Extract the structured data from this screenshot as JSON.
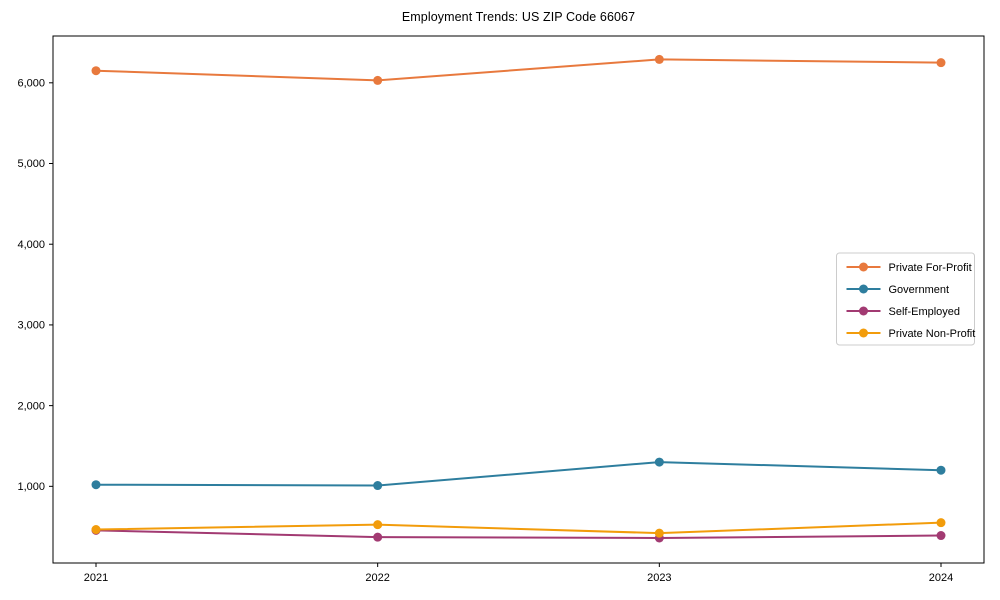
{
  "chart_data": {
    "type": "line",
    "title": "Employment Trends: US ZIP Code 66067",
    "categories": [
      "2021",
      "2022",
      "2023",
      "2024"
    ],
    "series": [
      {
        "name": "Private For-Profit",
        "color": "#e8793d",
        "values": [
          6150,
          6030,
          6290,
          6250
        ]
      },
      {
        "name": "Government",
        "color": "#2e7e9e",
        "values": [
          1020,
          1010,
          1300,
          1200
        ]
      },
      {
        "name": "Self-Employed",
        "color": "#a23a72",
        "values": [
          455,
          370,
          360,
          390
        ]
      },
      {
        "name": "Private Non-Profit",
        "color": "#f29c0b",
        "values": [
          465,
          525,
          420,
          550
        ]
      }
    ],
    "yticks": [
      {
        "value": 1000,
        "label": "1,000"
      },
      {
        "value": 2000,
        "label": "2,000"
      },
      {
        "value": 3000,
        "label": "3,000"
      },
      {
        "value": 4000,
        "label": "4,000"
      },
      {
        "value": 5000,
        "label": "5,000"
      },
      {
        "value": 6000,
        "label": "6,000"
      }
    ],
    "ylim": [
      50,
      6580
    ],
    "xlabel": "",
    "ylabel": "",
    "grid": false,
    "legend_position": "center-right",
    "axis_color": "#000000",
    "tick_label_color": "#000000",
    "legend_border_color": "#cccccc",
    "background": "#ffffff"
  }
}
